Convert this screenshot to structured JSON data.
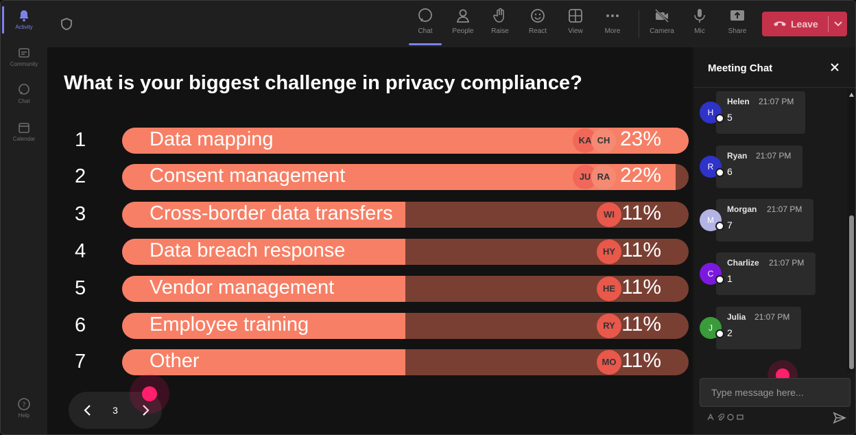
{
  "rail": {
    "items": [
      {
        "label": "Activity",
        "icon": "bell-icon",
        "active": true
      },
      {
        "label": "Community",
        "icon": "community-icon"
      },
      {
        "label": "Chat",
        "icon": "chat-icon"
      },
      {
        "label": "Calendar",
        "icon": "calendar-icon"
      }
    ],
    "help": {
      "label": "Help",
      "icon": "help-icon"
    }
  },
  "toolbar": {
    "buttons": [
      {
        "label": "Chat",
        "icon": "chat-icon",
        "active": true
      },
      {
        "label": "People",
        "icon": "people-icon"
      },
      {
        "label": "Raise",
        "icon": "raise-hand-icon"
      },
      {
        "label": "React",
        "icon": "smiley-icon"
      },
      {
        "label": "View",
        "icon": "grid-icon"
      },
      {
        "label": "More",
        "icon": "more-icon"
      },
      {
        "label": "Camera",
        "icon": "camera-off-icon"
      },
      {
        "label": "Mic",
        "icon": "mic-icon"
      },
      {
        "label": "Share",
        "icon": "share-icon"
      }
    ],
    "leave_label": "Leave"
  },
  "poll": {
    "question": "What is your biggest challenge in privacy compliance?",
    "options": [
      {
        "num": "1",
        "label": "Data mapping",
        "percent": "23%",
        "fill": 1.0,
        "voters": [
          "KA",
          "CH"
        ]
      },
      {
        "num": "2",
        "label": "Consent management",
        "percent": "22%",
        "fill": 0.977,
        "voters": [
          "JU",
          "RA"
        ]
      },
      {
        "num": "3",
        "label": "Cross-border data transfers",
        "percent": "11%",
        "fill": 0.5,
        "voters": [
          "WI"
        ]
      },
      {
        "num": "4",
        "label": "Data breach response",
        "percent": "11%",
        "fill": 0.5,
        "voters": [
          "HY"
        ]
      },
      {
        "num": "5",
        "label": "Vendor management",
        "percent": "11%",
        "fill": 0.5,
        "voters": [
          "HE"
        ]
      },
      {
        "num": "6",
        "label": "Employee training",
        "percent": "11%",
        "fill": 0.5,
        "voters": [
          "RY"
        ]
      },
      {
        "num": "7",
        "label": "Other",
        "percent": "11%",
        "fill": 0.5,
        "voters": [
          "MO"
        ]
      }
    ],
    "page": "3"
  },
  "chat": {
    "title": "Meeting Chat",
    "messages": [
      {
        "initial": "H",
        "name": "Helen",
        "time": "21:07 PM",
        "text": "5",
        "color": "#2f33c9"
      },
      {
        "initial": "R",
        "name": "Ryan",
        "time": "21:07 PM",
        "text": "6",
        "color": "#2f33c9"
      },
      {
        "initial": "M",
        "name": "Morgan",
        "time": "21:07 PM",
        "text": "7",
        "color": "#b3b3e6"
      },
      {
        "initial": "C",
        "name": "Charlize",
        "time": "21:07 PM",
        "text": "1",
        "color": "#7c19e0"
      },
      {
        "initial": "J",
        "name": "Julia",
        "time": "21:07 PM",
        "text": "2",
        "color": "#3a9b3a"
      }
    ],
    "placeholder": "Type message here..."
  },
  "colors": {
    "accent": "#7b83eb",
    "bar_fill": "#f77f65",
    "bar_track": "#7a3f33",
    "leave": "#c4314b",
    "cursor": "#ff1f6b"
  }
}
